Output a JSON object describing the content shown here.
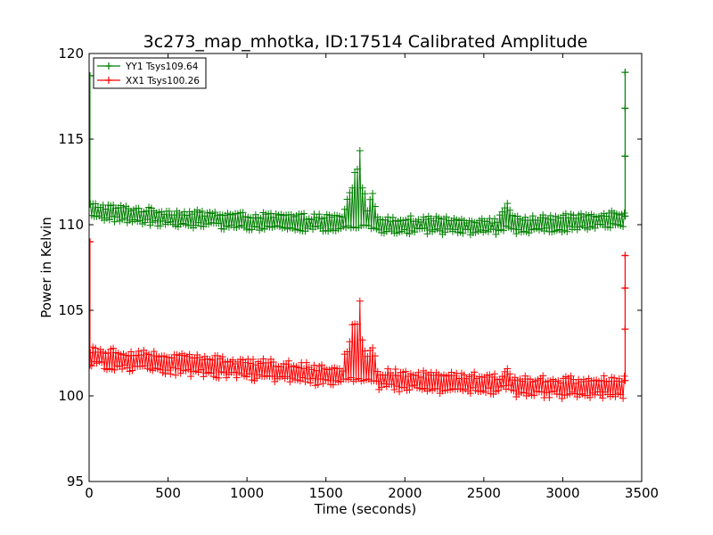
{
  "chart_data": {
    "type": "line",
    "title": "3c273_map_mhotka, ID:17514 Calibrated Amplitude",
    "xlabel": "Time (seconds)",
    "ylabel": "Power in Kelvin",
    "xlim": [
      0,
      3500
    ],
    "ylim": [
      95,
      120
    ],
    "xticks": [
      0,
      500,
      1000,
      1500,
      2000,
      2500,
      3000,
      3500
    ],
    "yticks": [
      95,
      100,
      105,
      110,
      115,
      120
    ],
    "grid": false,
    "legend_position": "top-left",
    "series": [
      {
        "name": "YY1 Tsys109.64",
        "color": "#008000",
        "marker": "+",
        "baseline": [
          [
            0,
            110.8
          ],
          [
            500,
            110.4
          ],
          [
            1000,
            110.2
          ],
          [
            1500,
            110.1
          ],
          [
            2000,
            110.0
          ],
          [
            2500,
            109.9
          ],
          [
            3000,
            110.1
          ],
          [
            3400,
            110.4
          ]
        ],
        "noise_band": 0.35,
        "bumps": [
          {
            "x": 1700,
            "width": 55,
            "height": 4.8
          },
          {
            "x": 1640,
            "width": 30,
            "height": 2.0
          },
          {
            "x": 1790,
            "width": 30,
            "height": 2.5
          },
          {
            "x": 2640,
            "width": 40,
            "height": 1.7
          }
        ],
        "edge_points": [
          [
            5,
            118.7
          ],
          [
            5,
            111.2
          ],
          [
            3395,
            118.9
          ],
          [
            3395,
            116.8
          ],
          [
            3395,
            114.0
          ],
          [
            3395,
            110.5
          ]
        ]
      },
      {
        "name": "XX1 Tsys100.26",
        "color": "#ff0000",
        "marker": "+",
        "baseline": [
          [
            0,
            102.3
          ],
          [
            500,
            101.9
          ],
          [
            1000,
            101.6
          ],
          [
            1500,
            101.2
          ],
          [
            2000,
            100.9
          ],
          [
            2500,
            100.7
          ],
          [
            3000,
            100.5
          ],
          [
            3400,
            100.5
          ]
        ],
        "noise_band": 0.45,
        "bumps": [
          {
            "x": 1700,
            "width": 55,
            "height": 5.0
          },
          {
            "x": 1640,
            "width": 30,
            "height": 2.5
          },
          {
            "x": 1790,
            "width": 30,
            "height": 2.3
          },
          {
            "x": 2640,
            "width": 40,
            "height": 1.1
          }
        ],
        "edge_points": [
          [
            5,
            109.0
          ],
          [
            5,
            101.8
          ],
          [
            3395,
            108.2
          ],
          [
            3395,
            106.3
          ],
          [
            3395,
            103.9
          ],
          [
            3395,
            100.9
          ]
        ]
      }
    ]
  }
}
